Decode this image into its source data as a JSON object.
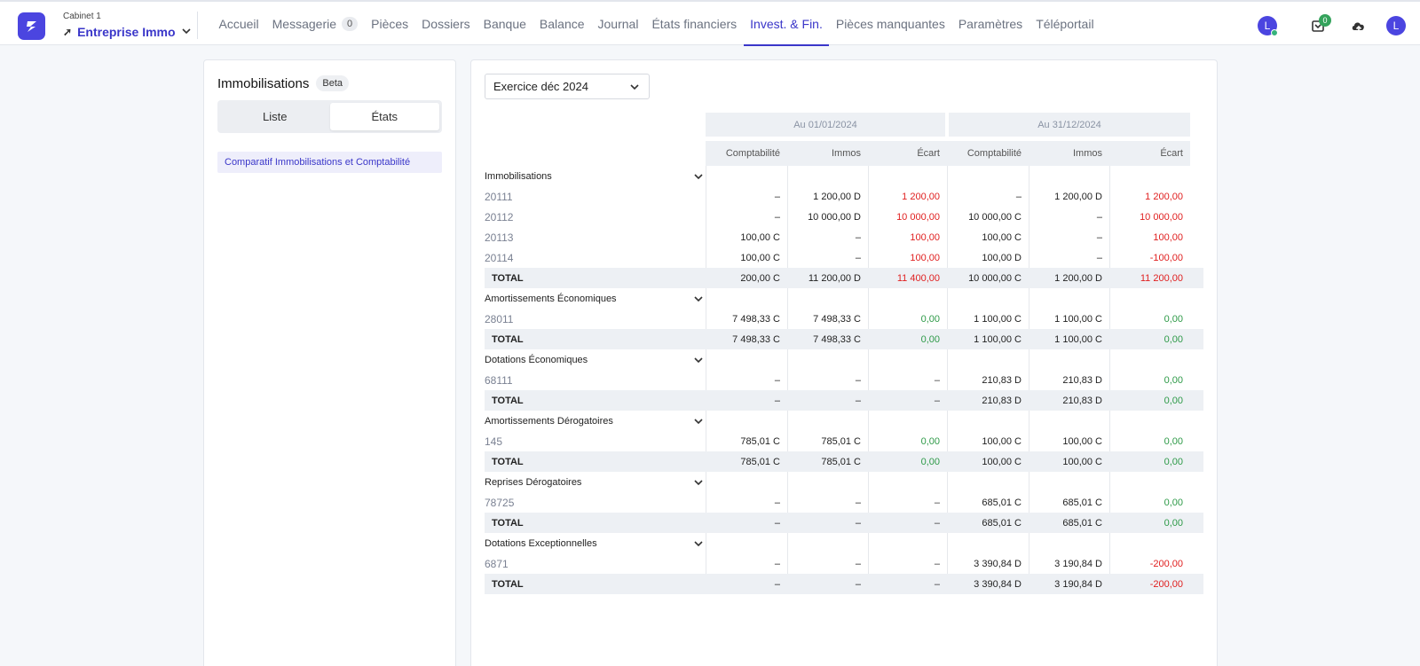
{
  "header": {
    "cabinet": "Cabinet 1",
    "company": "Entreprise Immo",
    "nav": [
      {
        "label": "Accueil",
        "name": "nav-accueil"
      },
      {
        "label": "Messagerie",
        "name": "nav-messagerie",
        "count": "0"
      },
      {
        "label": "Pièces",
        "name": "nav-pieces"
      },
      {
        "label": "Dossiers",
        "name": "nav-dossiers"
      },
      {
        "label": "Banque",
        "name": "nav-banque"
      },
      {
        "label": "Balance",
        "name": "nav-balance"
      },
      {
        "label": "Journal",
        "name": "nav-journal"
      },
      {
        "label": "États financiers",
        "name": "nav-etats-financiers"
      },
      {
        "label": "Invest. & Fin.",
        "name": "nav-invest-fin",
        "active": true
      },
      {
        "label": "Pièces manquantes",
        "name": "nav-pieces-manquantes"
      },
      {
        "label": "Paramètres",
        "name": "nav-parametres"
      },
      {
        "label": "Téléportail",
        "name": "nav-teleportail"
      }
    ],
    "avatar_initial": "L",
    "notifications_count": "0",
    "user_initial": "L",
    "accent": "#3a36c9"
  },
  "sidebar": {
    "title": "Immobilisations",
    "badge": "Beta",
    "tabs": [
      "Liste",
      "États"
    ],
    "active_tab": "États",
    "link": "Comparatif Immobilisations et Comptabilité"
  },
  "main": {
    "exercice": "Exercice déc 2024",
    "periods": [
      "Au 01/01/2024",
      "Au 31/12/2024"
    ],
    "columns": [
      "Comptabilité",
      "Immos",
      "Écart",
      "Comptabilité",
      "Immos",
      "Écart"
    ],
    "groups": [
      {
        "title": "Immobilisations",
        "rows": [
          {
            "account": "20111",
            "values": [
              "–",
              "1 200,00 D",
              "1 200,00",
              "–",
              "1 200,00 D",
              "1 200,00"
            ],
            "ecart": [
              "red",
              "red"
            ]
          },
          {
            "account": "20112",
            "values": [
              "–",
              "10 000,00 D",
              "10 000,00",
              "10 000,00 C",
              "–",
              "10 000,00"
            ],
            "ecart": [
              "red",
              "red"
            ]
          },
          {
            "account": "20113",
            "values": [
              "100,00 C",
              "–",
              "100,00",
              "100,00 C",
              "–",
              "100,00"
            ],
            "ecart": [
              "red",
              "red"
            ]
          },
          {
            "account": "20114",
            "values": [
              "100,00 C",
              "–",
              "100,00",
              "100,00 D",
              "–",
              "-100,00"
            ],
            "ecart": [
              "red",
              "red"
            ]
          }
        ],
        "total": {
          "label": "TOTAL",
          "values": [
            "200,00 C",
            "11 200,00 D",
            "11 400,00",
            "10 000,00 C",
            "1 200,00 D",
            "11 200,00"
          ],
          "ecart": [
            "red",
            "red"
          ]
        }
      },
      {
        "title": "Amortissements Économiques",
        "rows": [
          {
            "account": "28011",
            "values": [
              "7 498,33 C",
              "7 498,33 C",
              "0,00",
              "1 100,00 C",
              "1 100,00 C",
              "0,00"
            ],
            "ecart": [
              "green",
              "green"
            ]
          }
        ],
        "total": {
          "label": "TOTAL",
          "values": [
            "7 498,33 C",
            "7 498,33 C",
            "0,00",
            "1 100,00 C",
            "1 100,00 C",
            "0,00"
          ],
          "ecart": [
            "green",
            "green"
          ]
        }
      },
      {
        "title": "Dotations Économiques",
        "rows": [
          {
            "account": "68111",
            "values": [
              "–",
              "–",
              "–",
              "210,83 D",
              "210,83 D",
              "0,00"
            ],
            "ecart": [
              "dash",
              "green"
            ]
          }
        ],
        "total": {
          "label": "TOTAL",
          "values": [
            "–",
            "–",
            "–",
            "210,83 D",
            "210,83 D",
            "0,00"
          ],
          "ecart": [
            "dash",
            "green"
          ]
        }
      },
      {
        "title": "Amortissements Dérogatoires",
        "rows": [
          {
            "account": "145",
            "values": [
              "785,01 C",
              "785,01 C",
              "0,00",
              "100,00 C",
              "100,00 C",
              "0,00"
            ],
            "ecart": [
              "green",
              "green"
            ]
          }
        ],
        "total": {
          "label": "TOTAL",
          "values": [
            "785,01 C",
            "785,01 C",
            "0,00",
            "100,00 C",
            "100,00 C",
            "0,00"
          ],
          "ecart": [
            "green",
            "green"
          ]
        }
      },
      {
        "title": "Reprises Dérogatoires",
        "rows": [
          {
            "account": "78725",
            "values": [
              "–",
              "–",
              "–",
              "685,01 C",
              "685,01 C",
              "0,00"
            ],
            "ecart": [
              "dash",
              "green"
            ]
          }
        ],
        "total": {
          "label": "TOTAL",
          "values": [
            "–",
            "–",
            "–",
            "685,01 C",
            "685,01 C",
            "0,00"
          ],
          "ecart": [
            "dash",
            "green"
          ]
        }
      },
      {
        "title": "Dotations Exceptionnelles",
        "rows": [
          {
            "account": "6871",
            "values": [
              "–",
              "–",
              "–",
              "3 390,84 D",
              "3 190,84 D",
              "-200,00"
            ],
            "ecart": [
              "dash",
              "red"
            ]
          }
        ],
        "total": {
          "label": "TOTAL",
          "values": [
            "–",
            "–",
            "–",
            "3 390,84 D",
            "3 190,84 D",
            "-200,00"
          ],
          "ecart": [
            "dash",
            "red"
          ]
        }
      }
    ]
  }
}
